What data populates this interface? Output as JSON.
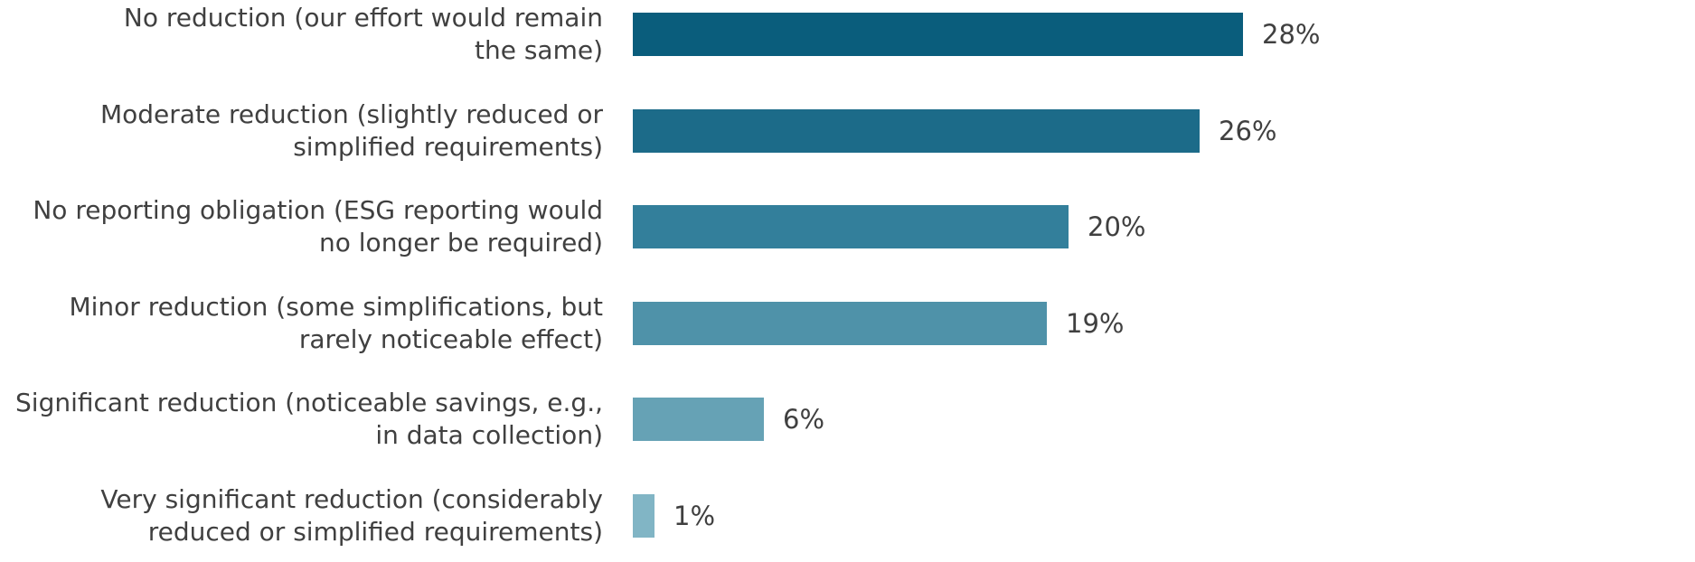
{
  "chart_data": {
    "type": "bar",
    "orientation": "horizontal",
    "title": "",
    "xlabel": "",
    "ylabel": "",
    "grid": false,
    "axes_visible": false,
    "background": "#ffffff",
    "text_color": "#404040",
    "xlim": [
      0,
      28
    ],
    "categories": [
      "No reduction (our effort would remain the same)",
      "Moderate reduction (slightly reduced or simplified requirements)",
      "No reporting obligation (ESG reporting would no longer be required)",
      "Minor reduction (some simplifications, but rarely noticeable effect)",
      "Significant reduction (noticeable savings, e.g., in data collection)",
      "Very significant reduction (considerably reduced or simplified requirements)"
    ],
    "category_lines": [
      [
        "No reduction (our effort would remain",
        "the same)"
      ],
      [
        "Moderate reduction (slightly reduced or",
        "simplified requirements)"
      ],
      [
        "No reporting obligation (ESG reporting would",
        "no longer be required)"
      ],
      [
        "Minor reduction (some simplifications, but",
        "rarely noticeable effect)"
      ],
      [
        "Significant reduction (noticeable savings, e.g.,",
        "in data collection)"
      ],
      [
        "Very significant reduction (considerably",
        "reduced or simplified requirements)"
      ]
    ],
    "values": [
      28,
      26,
      20,
      19,
      6,
      1
    ],
    "value_labels": [
      "28%",
      "26%",
      "20%",
      "19%",
      "6%",
      "1%"
    ],
    "bar_colors": [
      "#0a5d7c",
      "#1c6b89",
      "#337f9b",
      "#4f92a9",
      "#66a2b5",
      "#81b5c5"
    ]
  }
}
